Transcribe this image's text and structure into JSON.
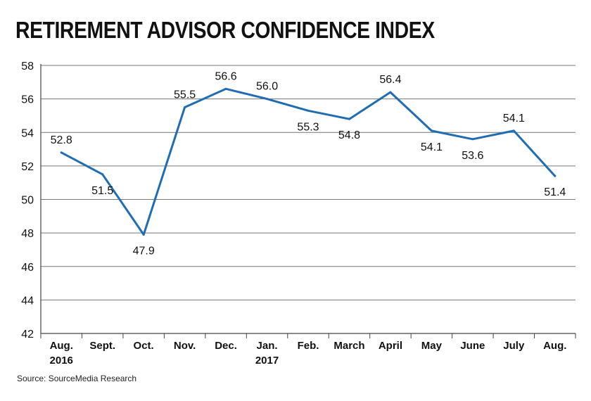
{
  "chart_data": {
    "type": "line",
    "title": "RETIREMENT ADVISOR CONFIDENCE INDEX",
    "categories": [
      [
        "Aug.",
        "2016"
      ],
      [
        "Sept."
      ],
      [
        "Oct."
      ],
      [
        "Nov."
      ],
      [
        "Dec."
      ],
      [
        "Jan.",
        "2017"
      ],
      [
        "Feb."
      ],
      [
        "March"
      ],
      [
        "April"
      ],
      [
        "May"
      ],
      [
        "June"
      ],
      [
        "July"
      ],
      [
        "Aug."
      ]
    ],
    "series": [
      {
        "values": [
          52.8,
          51.5,
          47.9,
          55.5,
          56.6,
          56.0,
          55.3,
          54.8,
          56.4,
          54.1,
          53.6,
          54.1,
          51.4
        ]
      }
    ],
    "data_labels": [
      "52.8",
      "51.5",
      "47.9",
      "55.5",
      "56.6",
      "56.0",
      "55.3",
      "54.8",
      "56.4",
      "54.1",
      "53.6",
      "54.1",
      "51.4"
    ],
    "label_position": [
      "above",
      "below",
      "below",
      "above",
      "above",
      "above",
      "below",
      "below",
      "above",
      "below",
      "below",
      "above",
      "below"
    ],
    "ylim": [
      42,
      58
    ],
    "yticks": [
      42,
      44,
      46,
      48,
      50,
      52,
      54,
      56,
      58
    ],
    "grid": true,
    "xlabel": "",
    "ylabel": "",
    "line_color": "#1f6db5"
  },
  "source": "Source: SourceMedia Research"
}
